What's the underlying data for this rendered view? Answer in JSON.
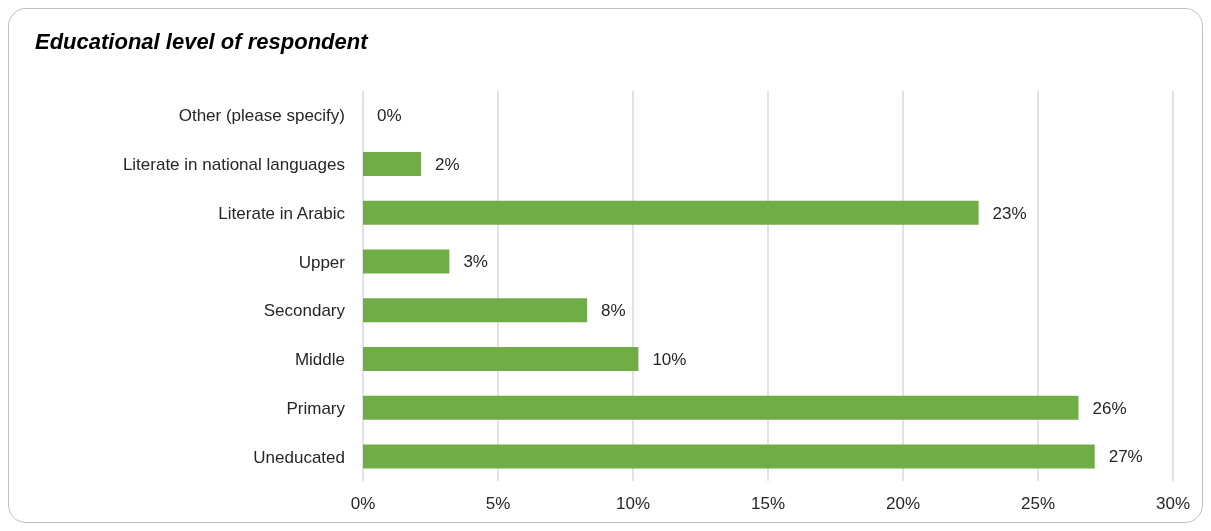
{
  "chart_data": {
    "type": "bar",
    "orientation": "horizontal",
    "title": "Educational level of respondent",
    "categories": [
      "Other (please specify)",
      "Literate in national languages",
      "Literate in Arabic",
      "Upper",
      "Secondary",
      "Middle",
      "Primary",
      "Uneducated"
    ],
    "values": [
      0,
      2.15,
      22.8,
      3.2,
      8.3,
      10.2,
      26.5,
      27.1
    ],
    "value_labels": [
      "0%",
      "2%",
      "23%",
      "3%",
      "8%",
      "10%",
      "26%",
      "27%"
    ],
    "color": "#70ad47",
    "xlim": [
      0,
      30
    ],
    "xticks": [
      {
        "value": 0,
        "label": "0%"
      },
      {
        "value": 5,
        "label": "5%"
      },
      {
        "value": 10,
        "label": "10%"
      },
      {
        "value": 15,
        "label": "15%"
      },
      {
        "value": 20,
        "label": "20%"
      },
      {
        "value": 25,
        "label": "25%"
      },
      {
        "value": 30,
        "label": "30%"
      }
    ],
    "grid": "x",
    "legend": false
  }
}
